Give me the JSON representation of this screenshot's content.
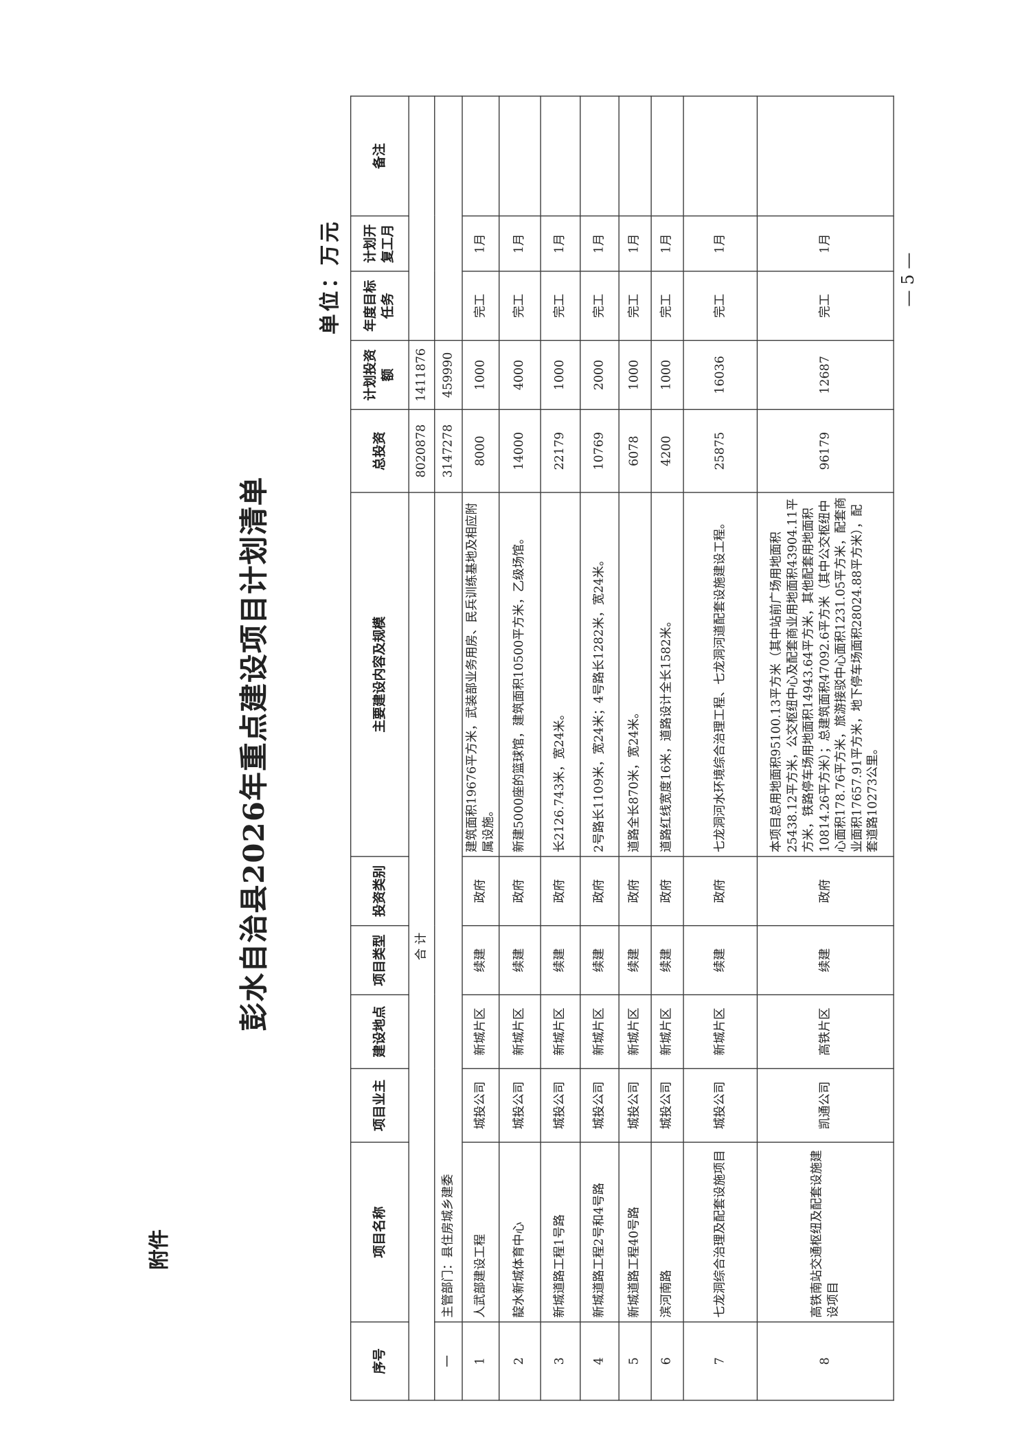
{
  "attachment_label": "附件",
  "header": {
    "title": "彭水自治县2026年重点建设项目计划清单",
    "unit": "单位：万元"
  },
  "table": {
    "columns": [
      "序号",
      "项目名称",
      "项目业主",
      "建设地点",
      "项目类型",
      "投资类别",
      "主要建设内容及规模",
      "总投资",
      "计划投资额",
      "年度目标任务",
      "计划开复工月",
      "备注"
    ],
    "total_row": {
      "label": "合 计",
      "total_investment": "8020878",
      "planned_investment": "1411876"
    },
    "department_row": {
      "index": "一",
      "label": "主管部门：县住房城乡建委",
      "total_investment": "3147278",
      "planned_investment": "459990"
    },
    "rows": [
      [
        "1",
        "人武部建设工程",
        "城投公司",
        "新城片区",
        "续建",
        "政府",
        "建筑面积19676平方米，武装部业务用房、民兵训练基地及相应附属设施。",
        "8000",
        "1000",
        "完工",
        "1月"
      ],
      [
        "2",
        "靛水新城体育中心",
        "城投公司",
        "新城片区",
        "续建",
        "政府",
        "新建5000座的篮球馆，建筑面积10500平方米，乙级场馆。",
        "14000",
        "4000",
        "完工",
        "1月"
      ],
      [
        "3",
        "新城道路工程1号路",
        "城投公司",
        "新城片区",
        "续建",
        "政府",
        "长2126.743米，宽24米。",
        "22179",
        "1000",
        "完工",
        "1月"
      ],
      [
        "4",
        "新城道路工程2号和4号路",
        "城投公司",
        "新城片区",
        "续建",
        "政府",
        "2号路长1109米，宽24米；4号路长1282米，宽24米。",
        "10769",
        "2000",
        "完工",
        "1月"
      ],
      [
        "5",
        "新城道路工程40号路",
        "城投公司",
        "新城片区",
        "续建",
        "政府",
        "道路全长870米，宽24米。",
        "6078",
        "1000",
        "完工",
        "1月"
      ],
      [
        "6",
        "滨河南路",
        "城投公司",
        "新城片区",
        "续建",
        "政府",
        "道路红线宽度16米，道路设计全长1582米。",
        "4200",
        "1000",
        "完工",
        "1月"
      ],
      [
        "7",
        "七龙洞综合治理及配套设施项目",
        "城投公司",
        "新城片区",
        "续建",
        "政府",
        "七龙洞河水环境综合治理工程、七龙洞河道配套设施建设工程。",
        "25875",
        "16036",
        "完工",
        "1月"
      ],
      [
        "8",
        "高铁南站交通枢纽及配套设施建设项目",
        "凯通公司",
        "高铁片区",
        "续建",
        "政府",
        "本项目总用地面积95100.13平方米（其中站前广场用地面积25438.12平方米，公交枢纽中心及配套商业用地面积43904.11平方米，铁路停车场用地面积14943.64平方米，其他配套用地面积10814.26平方米）；总建筑面积47092.6平方米（其中公交枢纽中心面积178.76平方米，旅游接驳中心面积1231.05平方米，配套商业面积17657.91平方米，地下停车场面积28024.88平方米），配套道路10273公里。",
        "96179",
        "12687",
        "完工",
        "1月"
      ]
    ]
  },
  "page_number": "— 5 —"
}
